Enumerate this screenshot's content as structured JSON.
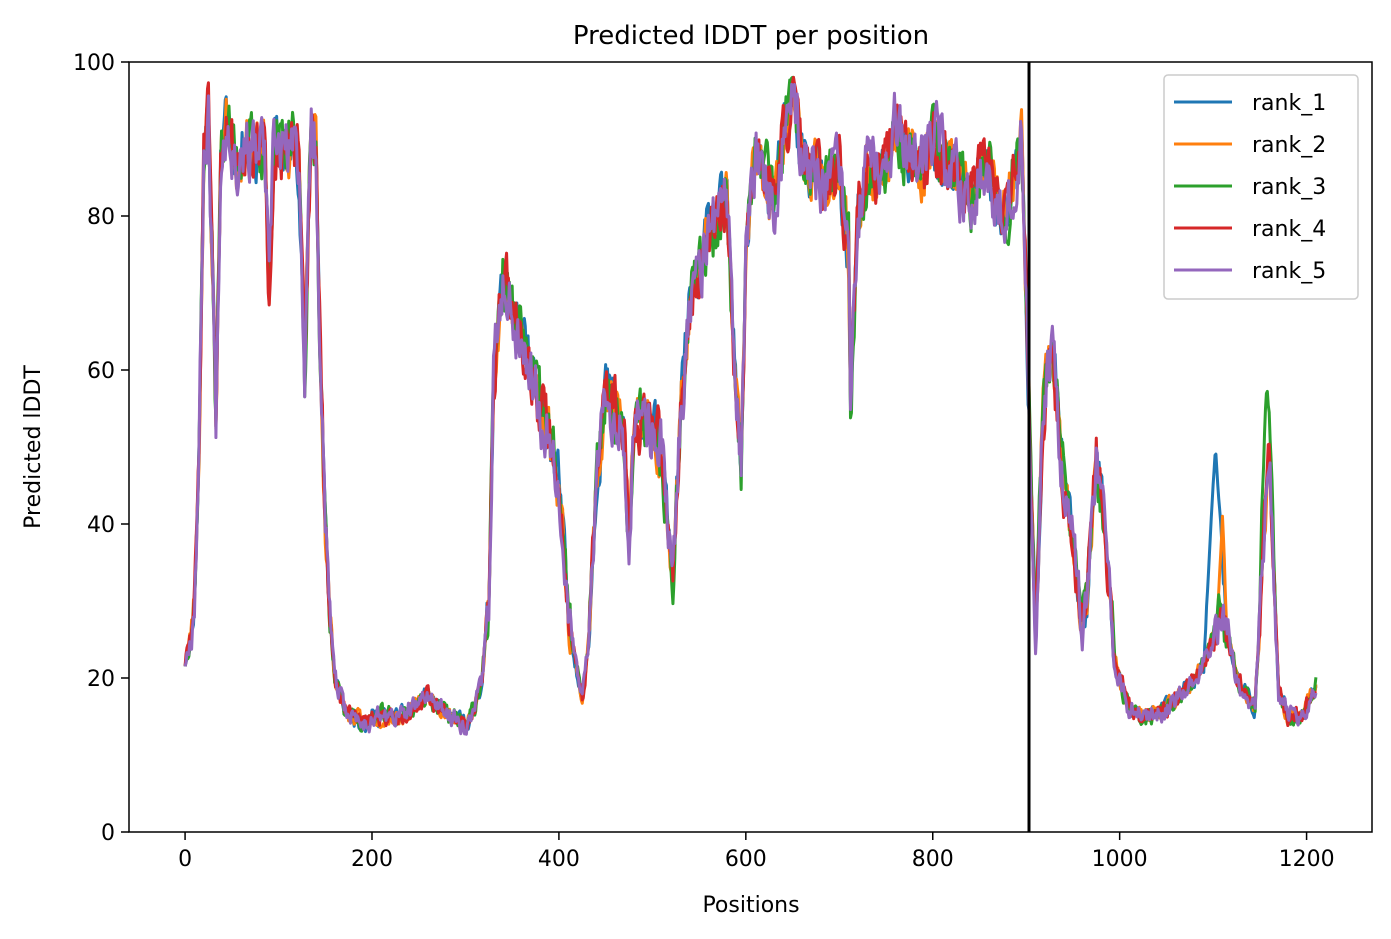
{
  "chart_data": {
    "type": "line",
    "title": "Predicted lDDT per position",
    "xlabel": "Positions",
    "ylabel": "Predicted lDDT",
    "xlim": [
      -60,
      1270
    ],
    "ylim": [
      0,
      100
    ],
    "xticks": [
      0,
      200,
      400,
      600,
      800,
      1000,
      1200
    ],
    "yticks": [
      0,
      20,
      40,
      60,
      80,
      100
    ],
    "grid": false,
    "legend_position": "top-right",
    "vline_x": 903,
    "x_range": [
      0,
      1210
    ],
    "profile_x": [
      0,
      5,
      10,
      15,
      20,
      25,
      30,
      33,
      38,
      45,
      55,
      65,
      75,
      85,
      90,
      95,
      105,
      115,
      122,
      128,
      135,
      140,
      145,
      150,
      155,
      160,
      170,
      180,
      195,
      200,
      215,
      230,
      245,
      260,
      270,
      285,
      300,
      310,
      318,
      325,
      330,
      340,
      350,
      360,
      370,
      380,
      390,
      400,
      405,
      410,
      418,
      425,
      432,
      440,
      450,
      460,
      470,
      475,
      480,
      490,
      500,
      510,
      518,
      522,
      530,
      540,
      550,
      560,
      570,
      580,
      588,
      595,
      600,
      610,
      620,
      630,
      640,
      650,
      660,
      670,
      680,
      690,
      700,
      710,
      712,
      720,
      730,
      740,
      750,
      760,
      770,
      780,
      790,
      800,
      810,
      820,
      830,
      840,
      850,
      860,
      870,
      880,
      890,
      895,
      900,
      905,
      910,
      918,
      925,
      930,
      940,
      950,
      960,
      965,
      975,
      985,
      995,
      1010,
      1030,
      1050,
      1065,
      1080,
      1090,
      1100,
      1108,
      1115,
      1125,
      1135,
      1145,
      1155,
      1160,
      1170,
      1180,
      1195,
      1210
    ],
    "profile_y": [
      22,
      25,
      30,
      50,
      88,
      93,
      70,
      53,
      88,
      93,
      87,
      90,
      88,
      89,
      70,
      90,
      88,
      89,
      87,
      60,
      92,
      90,
      60,
      40,
      28,
      20,
      16,
      15,
      14,
      15,
      15,
      15,
      16,
      18,
      16,
      15,
      14,
      16,
      20,
      30,
      60,
      72,
      68,
      64,
      60,
      55,
      52,
      45,
      38,
      28,
      22,
      17,
      25,
      45,
      58,
      55,
      52,
      38,
      50,
      55,
      52,
      50,
      38,
      33,
      55,
      68,
      72,
      78,
      80,
      82,
      60,
      48,
      75,
      88,
      85,
      82,
      90,
      95,
      88,
      86,
      85,
      84,
      85,
      75,
      55,
      80,
      86,
      85,
      86,
      92,
      88,
      87,
      86,
      90,
      88,
      86,
      84,
      82,
      86,
      85,
      82,
      80,
      88,
      90,
      70,
      45,
      25,
      55,
      62,
      60,
      45,
      38,
      27,
      30,
      50,
      38,
      22,
      16,
      15,
      16,
      18,
      20,
      22,
      25,
      28,
      26,
      20,
      18,
      16,
      40,
      50,
      18,
      15,
      15,
      19
    ],
    "series": [
      {
        "name": "rank_1",
        "color": "#1f77b4",
        "seed": 11,
        "amp": 3.5
      },
      {
        "name": "rank_2",
        "color": "#ff7f0e",
        "seed": 23,
        "amp": 3.5
      },
      {
        "name": "rank_3",
        "color": "#2ca02c",
        "seed": 37,
        "amp": 4.0
      },
      {
        "name": "rank_4",
        "color": "#d62728",
        "seed": 51,
        "amp": 3.8
      },
      {
        "name": "rank_5",
        "color": "#9467bd",
        "seed": 67,
        "amp": 4.2
      }
    ],
    "notable_deviations": [
      {
        "series": "rank_1",
        "x_range": [
          1090,
          1115
        ],
        "peak": 50
      },
      {
        "series": "rank_3",
        "x_range": [
          1150,
          1165
        ],
        "peak": 58
      },
      {
        "series": "rank_2",
        "x_range": [
          1105,
          1115
        ],
        "peak": 41
      }
    ]
  }
}
